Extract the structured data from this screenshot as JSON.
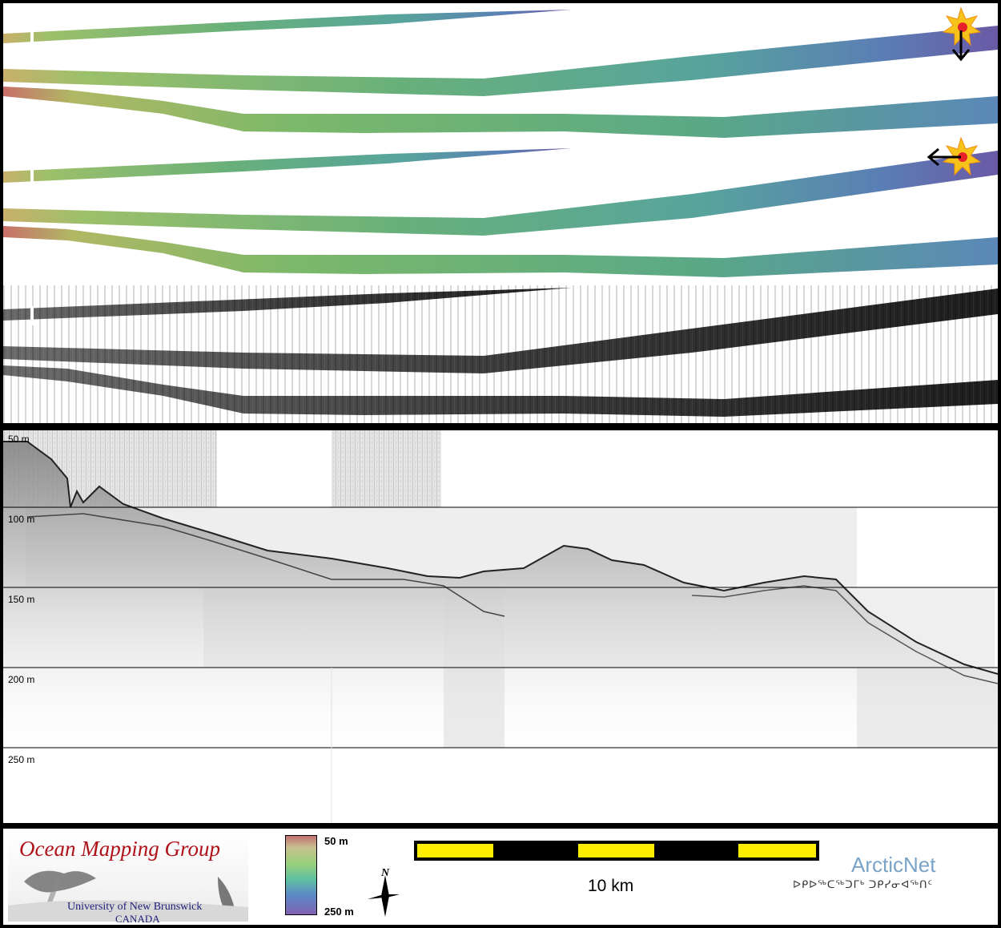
{
  "profile": {
    "depth_labels": [
      "50 m",
      "100 m",
      "150 m",
      "200 m",
      "250 m"
    ]
  },
  "legend": {
    "org_title": "Ocean Mapping Group",
    "org_university": "University of New Brunswick",
    "org_country": "CANADA",
    "colorbar_min": "50 m",
    "colorbar_max": "250 m",
    "north_label": "N",
    "scale_label": "10 km",
    "partner_title": "ArcticNet",
    "partner_subtitle": "ᐅᑭᐅᖅᑕᖅᑐᒥᒃ ᑐᑭᓯᓂᐊᖅᑎᑦ"
  },
  "colors": {
    "colorbar_shallow": "#b06a6a",
    "colorbar_deep": "#7a5a9a",
    "scalebar_yellow": "#ffee00",
    "org_red": "#b0121a",
    "partner_blue": "#7aa3c8"
  }
}
